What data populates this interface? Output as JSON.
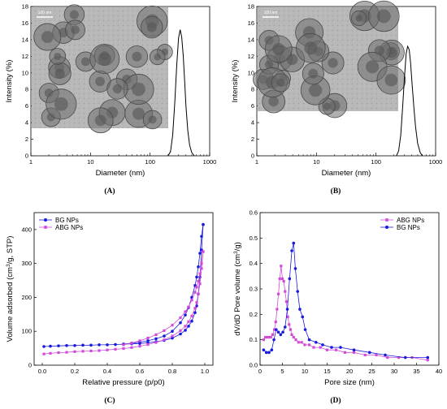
{
  "panels": [
    {
      "label": "(A)"
    },
    {
      "label": "(B)"
    },
    {
      "label": "(C)"
    },
    {
      "label": "(D)"
    }
  ],
  "insets": [
    {
      "scale_bar": "100 nm",
      "content": "TEM micrograph of dendritic nanoparticles"
    },
    {
      "scale_bar": "100 nm",
      "content": "TEM micrograph of dendritic nanoparticles"
    }
  ],
  "chart_data": [
    {
      "type": "line",
      "panel": "A",
      "xlabel": "Diameter (nm)",
      "ylabel": "Intensity (%)",
      "xscale": "log",
      "xlim": [
        1,
        1000
      ],
      "ylim": [
        0,
        18
      ],
      "xticks": [
        "1",
        "10",
        "100",
        "1000"
      ],
      "yticks": [
        "0",
        "2",
        "4",
        "6",
        "8",
        "10",
        "12",
        "14",
        "16",
        "18"
      ],
      "color": "#000000",
      "x": [
        200,
        220,
        240,
        260,
        280,
        300,
        320,
        340,
        360,
        380,
        400,
        430,
        460,
        500,
        550
      ],
      "y": [
        0,
        0.5,
        2.5,
        6.5,
        11,
        14.2,
        15.2,
        14.3,
        12,
        9,
        6,
        3,
        1.3,
        0.4,
        0
      ]
    },
    {
      "type": "line",
      "panel": "B",
      "xlabel": "Diameter (nm)",
      "ylabel": "Intensity (%)",
      "xscale": "log",
      "xlim": [
        1,
        1000
      ],
      "ylim": [
        0,
        18
      ],
      "xticks": [
        "1",
        "10",
        "100",
        "1000"
      ],
      "yticks": [
        "0",
        "2",
        "4",
        "6",
        "8",
        "10",
        "12",
        "14",
        "16",
        "18"
      ],
      "color": "#000000",
      "x": [
        220,
        240,
        260,
        280,
        300,
        320,
        340,
        360,
        380,
        400,
        430,
        460,
        500,
        550,
        600
      ],
      "y": [
        0,
        0.6,
        2.5,
        6,
        9.5,
        12.3,
        13.2,
        12.8,
        11.2,
        9,
        6,
        3.5,
        1.5,
        0.4,
        0
      ]
    },
    {
      "type": "scatter",
      "panel": "C",
      "xlabel": "Relative pressure (p/p0)",
      "ylabel": "Volume adsorbed (cm3/g, STP)",
      "xlim": [
        -0.05,
        1.05
      ],
      "ylim": [
        0,
        450
      ],
      "xticks": [
        "0.0",
        "0.2",
        "0.4",
        "0.6",
        "0.8",
        "1.0"
      ],
      "yticks": [
        "0",
        "100",
        "200",
        "300",
        "400"
      ],
      "legend_position": "top-left",
      "series": [
        {
          "name": "BG   NPs",
          "color": "#1a1adc",
          "marker": "circle",
          "adsorption": {
            "x": [
              0.01,
              0.05,
              0.1,
              0.15,
              0.2,
              0.25,
              0.3,
              0.35,
              0.4,
              0.45,
              0.5,
              0.55,
              0.6,
              0.65,
              0.7,
              0.75,
              0.8,
              0.85,
              0.88,
              0.9,
              0.92,
              0.94,
              0.95,
              0.96,
              0.97,
              0.98,
              0.99
            ],
            "y": [
              55,
              56,
              57,
              58,
              58,
              59,
              59,
              60,
              60,
              61,
              62,
              63,
              64,
              66,
              69,
              73,
              80,
              92,
              103,
              115,
              130,
              155,
              175,
              210,
              260,
              340,
              415
            ]
          },
          "desorption": {
            "x": [
              0.99,
              0.98,
              0.97,
              0.96,
              0.95,
              0.94,
              0.92,
              0.9,
              0.88,
              0.85,
              0.8,
              0.75,
              0.7,
              0.65,
              0.6,
              0.55,
              0.5
            ],
            "y": [
              415,
              380,
              330,
              290,
              260,
              235,
              200,
              170,
              148,
              125,
              100,
              86,
              78,
              72,
              68,
              65,
              62
            ]
          }
        },
        {
          "name": "ABG NPs",
          "color": "#d24bd8",
          "marker": "square",
          "adsorption": {
            "x": [
              0.01,
              0.05,
              0.1,
              0.15,
              0.2,
              0.25,
              0.3,
              0.35,
              0.4,
              0.45,
              0.5,
              0.55,
              0.6,
              0.65,
              0.7,
              0.75,
              0.8,
              0.85,
              0.88,
              0.9,
              0.92,
              0.94,
              0.95,
              0.96,
              0.97,
              0.98,
              0.99
            ],
            "y": [
              33,
              35,
              37,
              38,
              40,
              41,
              42,
              43,
              45,
              47,
              49,
              52,
              56,
              61,
              67,
              75,
              86,
              102,
              115,
              128,
              145,
              168,
              185,
              210,
              240,
              285,
              335
            ]
          },
          "desorption": {
            "x": [
              0.99,
              0.98,
              0.97,
              0.96,
              0.95,
              0.94,
              0.92,
              0.9,
              0.88,
              0.85,
              0.8,
              0.75,
              0.7,
              0.65,
              0.6,
              0.55,
              0.5
            ],
            "y": [
              335,
              300,
              270,
              248,
              230,
              215,
              192,
              172,
              158,
              140,
              118,
              102,
              90,
              80,
              72,
              65,
              60
            ]
          }
        }
      ]
    },
    {
      "type": "line",
      "panel": "D",
      "xlabel": "Pore size (nm)",
      "ylabel": "dV/dD Pore volume (cm3/g)",
      "xlim": [
        0,
        40
      ],
      "ylim": [
        0,
        0.6
      ],
      "xticks": [
        "0",
        "5",
        "10",
        "15",
        "20",
        "25",
        "30",
        "35",
        "40"
      ],
      "yticks": [
        "0.0",
        "0.1",
        "0.2",
        "0.3",
        "0.4",
        "0.5",
        "0.6"
      ],
      "legend_position": "top-right",
      "series": [
        {
          "name": "ABG  NPs",
          "color": "#d24bd8",
          "marker": "square",
          "x": [
            0.8,
            1.2,
            1.6,
            2.0,
            2.4,
            2.8,
            3.2,
            3.5,
            3.8,
            4.1,
            4.4,
            4.7,
            5.0,
            5.3,
            5.6,
            5.9,
            6.2,
            6.5,
            6.8,
            7.1,
            7.5,
            8.0,
            8.6,
            9.3,
            10,
            11,
            12,
            13.5,
            15,
            17,
            19,
            21,
            23.5,
            26,
            28.5,
            31,
            34,
            37.5
          ],
          "y": [
            0.1,
            0.11,
            0.11,
            0.11,
            0.11,
            0.12,
            0.14,
            0.17,
            0.22,
            0.28,
            0.34,
            0.39,
            0.34,
            0.33,
            0.29,
            0.25,
            0.19,
            0.16,
            0.14,
            0.12,
            0.11,
            0.1,
            0.09,
            0.09,
            0.08,
            0.08,
            0.07,
            0.07,
            0.06,
            0.06,
            0.05,
            0.05,
            0.04,
            0.04,
            0.03,
            0.03,
            0.03,
            0.02
          ]
        },
        {
          "name": "BG    NPs",
          "color": "#1a1adc",
          "marker": "circle",
          "x": [
            0.8,
            1.4,
            2.0,
            2.6,
            3.1,
            3.6,
            4.1,
            4.6,
            5.1,
            5.6,
            6.1,
            6.6,
            7.1,
            7.5,
            7.9,
            8.4,
            8.9,
            9.5,
            10.1,
            11,
            12.5,
            14,
            16,
            18,
            21,
            24.5,
            28,
            32.5,
            37.5
          ],
          "y": [
            0.06,
            0.05,
            0.05,
            0.06,
            0.1,
            0.14,
            0.13,
            0.12,
            0.13,
            0.15,
            0.22,
            0.34,
            0.45,
            0.48,
            0.38,
            0.29,
            0.22,
            0.19,
            0.14,
            0.1,
            0.09,
            0.08,
            0.07,
            0.07,
            0.06,
            0.05,
            0.04,
            0.03,
            0.03
          ]
        }
      ]
    }
  ]
}
